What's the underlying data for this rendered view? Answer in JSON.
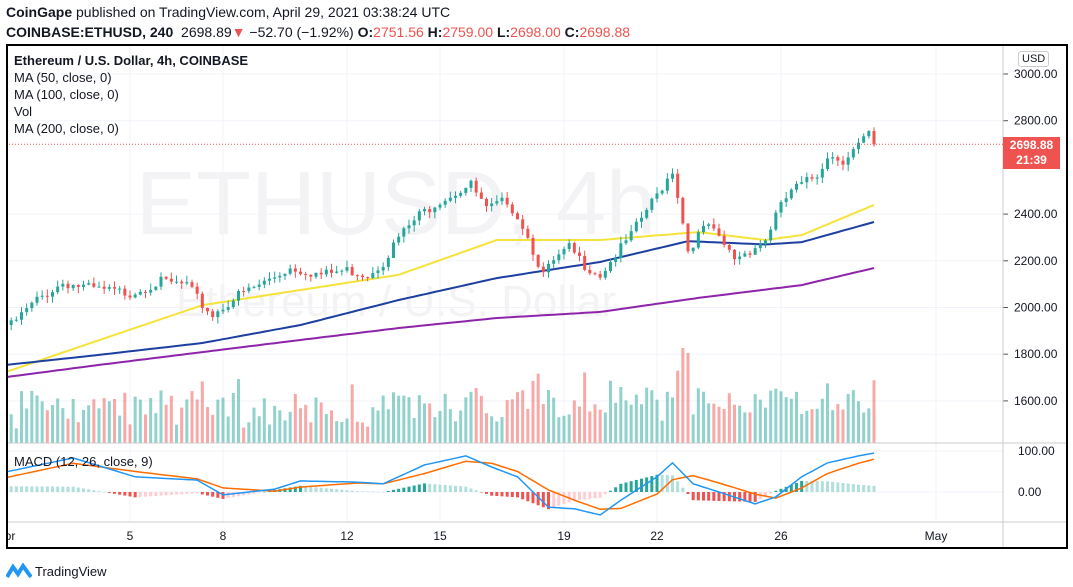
{
  "header": {
    "publisher": "CoinGape",
    "published_text": "published on TradingView.com, April 29, 2021 03:38:24 UTC",
    "symbol": "COINBASE:ETHUSD, 240",
    "last": "2698.89",
    "change": "−52.70 (−1.92%)",
    "o_label": "O:",
    "o": "2751.56",
    "h_label": "H:",
    "h": "2759.00",
    "l_label": "L:",
    "l": "2698.00",
    "c_label": "C:",
    "c": "2698.88"
  },
  "legend": {
    "title": "Ethereum / U.S. Dollar, 4h, COINBASE",
    "ma50": "MA (50, close, 0)",
    "ma100": "MA (100, close, 0)",
    "vol": "Vol",
    "ma200": "MA (200, close, 0)",
    "macd": "MACD (12, 26, close, 9)"
  },
  "watermark": {
    "symbol": "ETHUSD, 4h",
    "name": "Ethereum / U.S. Dollar"
  },
  "price_axis": {
    "currency": "USD",
    "last_price": "2698.88",
    "countdown": "21:39"
  },
  "branding": "TradingView",
  "colors": {
    "up": "#26a69a",
    "down": "#ef5350",
    "ma50": "#f5e33b",
    "ma100": "#1c3fa0",
    "ma200": "#8e24aa",
    "macd": "#2196f3",
    "signal": "#ff6d00"
  },
  "chart_data": {
    "type": "candlestick",
    "interval": "4h",
    "ylim": [
      1500,
      3100
    ],
    "yticks": [
      "3000.00",
      "2800.00",
      "2400.00",
      "2200.00",
      "2000.00",
      "1800.00",
      "1600.00"
    ],
    "xticks": [
      {
        "label": "Apr",
        "t": "Apr 1 00:00"
      },
      {
        "label": "5",
        "t": "Apr 5 00:00"
      },
      {
        "label": "8",
        "t": "Apr 8 00:00"
      },
      {
        "label": "12",
        "t": "Apr 12 00:00"
      },
      {
        "label": "15",
        "t": "Apr 15 00:00"
      },
      {
        "label": "19",
        "t": "Apr 19 00:00"
      },
      {
        "label": "22",
        "t": "Apr 22 00:00"
      },
      {
        "label": "26",
        "t": "Apr 26 00:00"
      },
      {
        "label": "May",
        "t": "May 1 00:00"
      }
    ],
    "close": [
      [
        "Apr 1 04:00",
        1925
      ],
      [
        "Apr 2 00:00",
        2032
      ],
      [
        "Apr 2 20:00",
        2105
      ],
      [
        "Apr 4 00:00",
        2075
      ],
      [
        "Apr 5 00:00",
        2062
      ],
      [
        "Apr 6 00:00",
        2110
      ],
      [
        "Apr 6 20:00",
        2096
      ],
      [
        "Apr 7 08:00",
        2010
      ],
      [
        "Apr 7 16:00",
        1968
      ],
      [
        "Apr 8 12:00",
        2053
      ],
      [
        "Apr 9 04:00",
        2096
      ],
      [
        "Apr 10 04:00",
        2170
      ],
      [
        "Apr 11 04:00",
        2140
      ],
      [
        "Apr 12 00:00",
        2160
      ],
      [
        "Apr 12 16:00",
        2140
      ],
      [
        "Apr 13 04:00",
        2195
      ],
      [
        "Apr 13 16:00",
        2300
      ],
      [
        "Apr 14 08:00",
        2396
      ],
      [
        "Apr 15 00:00",
        2460
      ],
      [
        "Apr 15 16:00",
        2503
      ],
      [
        "Apr 16 00:00",
        2525
      ],
      [
        "Apr 16 12:00",
        2418
      ],
      [
        "Apr 17 04:00",
        2460
      ],
      [
        "Apr 17 16:00",
        2353
      ],
      [
        "Apr 18 00:00",
        2246
      ],
      [
        "Apr 18 08:00",
        2140
      ],
      [
        "Apr 18 16:00",
        2195
      ],
      [
        "Apr 19 04:00",
        2255
      ],
      [
        "Apr 19 16:00",
        2182
      ],
      [
        "Apr 20 04:00",
        2140
      ],
      [
        "Apr 20 16:00",
        2225
      ],
      [
        "Apr 21 04:00",
        2310
      ],
      [
        "Apr 21 16:00",
        2418
      ],
      [
        "Apr 22 00:00",
        2482
      ],
      [
        "Apr 22 12:00",
        2589
      ],
      [
        "Apr 22 16:00",
        2482
      ],
      [
        "Apr 23 00:00",
        2246
      ],
      [
        "Apr 23 08:00",
        2310
      ],
      [
        "Apr 23 16:00",
        2353
      ],
      [
        "Apr 24 00:00",
        2289
      ],
      [
        "Apr 24 12:00",
        2212
      ],
      [
        "Apr 25 00:00",
        2246
      ],
      [
        "Apr 25 12:00",
        2289
      ],
      [
        "Apr 25 20:00",
        2396
      ],
      [
        "Apr 26 08:00",
        2503
      ],
      [
        "Apr 26 16:00",
        2525
      ],
      [
        "Apr 27 04:00",
        2567
      ],
      [
        "Apr 27 12:00",
        2653
      ],
      [
        "Apr 28 00:00",
        2632
      ],
      [
        "Apr 28 12:00",
        2696
      ],
      [
        "Apr 28 20:00",
        2739
      ],
      [
        "Apr 29 00:00",
        2699
      ]
    ],
    "ma50": [
      [
        "Apr 1 00:00",
        1724
      ],
      [
        "Apr 4 00:00",
        1860
      ],
      [
        "Apr 7 08:00",
        2010
      ],
      [
        "Apr 10 12:00",
        2075
      ],
      [
        "Apr 13 16:00",
        2140
      ],
      [
        "Apr 16 20:00",
        2289
      ],
      [
        "Apr 20 04:00",
        2289
      ],
      [
        "Apr 23 08:00",
        2323
      ],
      [
        "Apr 25 12:00",
        2289
      ],
      [
        "Apr 26 16:00",
        2310
      ],
      [
        "Apr 29 00:00",
        2439
      ]
    ],
    "ma100": [
      [
        "Apr 1 00:00",
        1754
      ],
      [
        "Apr 4 00:00",
        1797
      ],
      [
        "Apr 7 08:00",
        1848
      ],
      [
        "Apr 10 12:00",
        1925
      ],
      [
        "Apr 13 16:00",
        2032
      ],
      [
        "Apr 16 20:00",
        2126
      ],
      [
        "Apr 20 04:00",
        2195
      ],
      [
        "Apr 23 00:00",
        2284
      ],
      [
        "Apr 25 12:00",
        2270
      ],
      [
        "Apr 26 16:00",
        2280
      ],
      [
        "Apr 29 00:00",
        2366
      ]
    ],
    "ma200": [
      [
        "Apr 1 00:00",
        1702
      ],
      [
        "Apr 4 00:00",
        1754
      ],
      [
        "Apr 7 08:00",
        1809
      ],
      [
        "Apr 10 12:00",
        1861
      ],
      [
        "Apr 13 16:00",
        1912
      ],
      [
        "Apr 16 20:00",
        1955
      ],
      [
        "Apr 20 04:00",
        1981
      ],
      [
        "Apr 23 08:00",
        2041
      ],
      [
        "Apr 26 16:00",
        2096
      ],
      [
        "Apr 29 00:00",
        2169
      ]
    ],
    "macd": {
      "ylim": [
        -80,
        110
      ],
      "yticks": [
        "100.00",
        "0.00"
      ],
      "macd": [
        [
          "Apr 1 00:00",
          49
        ],
        [
          "Apr 3 04:00",
          83
        ],
        [
          "Apr 5 04:00",
          37
        ],
        [
          "Apr 7 04:00",
          29
        ],
        [
          "Apr 8 00:00",
          -7
        ],
        [
          "Apr 9 16:00",
          7
        ],
        [
          "Apr 10 12:00",
          27
        ],
        [
          "Apr 12 08:00",
          24
        ],
        [
          "Apr 13 04:00",
          20
        ],
        [
          "Apr 14 12:00",
          66
        ],
        [
          "Apr 15 20:00",
          88
        ],
        [
          "Apr 16 16:00",
          61
        ],
        [
          "Apr 17 12:00",
          37
        ],
        [
          "Apr 18 12:00",
          -37
        ],
        [
          "Apr 19 08:00",
          -41
        ],
        [
          "Apr 20 04:00",
          -56
        ],
        [
          "Apr 20 20:00",
          -20
        ],
        [
          "Apr 22 00:00",
          37
        ],
        [
          "Apr 22 12:00",
          71
        ],
        [
          "Apr 23 04:00",
          20
        ],
        [
          "Apr 24 00:00",
          0
        ],
        [
          "Apr 25 04:00",
          -29
        ],
        [
          "Apr 25 20:00",
          -12
        ],
        [
          "Apr 26 16:00",
          37
        ],
        [
          "Apr 27 12:00",
          71
        ],
        [
          "Apr 28 12:00",
          88
        ],
        [
          "Apr 29 00:00",
          95
        ]
      ],
      "signal": [
        [
          "Apr 1 00:00",
          35
        ],
        [
          "Apr 3 04:00",
          70
        ],
        [
          "Apr 5 04:00",
          50
        ],
        [
          "Apr 7 04:00",
          32
        ],
        [
          "Apr 8 00:00",
          10
        ],
        [
          "Apr 9 16:00",
          2
        ],
        [
          "Apr 10 12:00",
          12
        ],
        [
          "Apr 12 08:00",
          22
        ],
        [
          "Apr 13 04:00",
          20
        ],
        [
          "Apr 14 12:00",
          45
        ],
        [
          "Apr 15 20:00",
          75
        ],
        [
          "Apr 16 16:00",
          70
        ],
        [
          "Apr 17 12:00",
          50
        ],
        [
          "Apr 18 12:00",
          5
        ],
        [
          "Apr 19 08:00",
          -20
        ],
        [
          "Apr 20 04:00",
          -42
        ],
        [
          "Apr 20 20:00",
          -40
        ],
        [
          "Apr 22 00:00",
          -5
        ],
        [
          "Apr 22 12:00",
          30
        ],
        [
          "Apr 23 04:00",
          40
        ],
        [
          "Apr 24 00:00",
          22
        ],
        [
          "Apr 25 04:00",
          -5
        ],
        [
          "Apr 25 20:00",
          -15
        ],
        [
          "Apr 26 16:00",
          10
        ],
        [
          "Apr 27 12:00",
          45
        ],
        [
          "Apr 28 12:00",
          70
        ],
        [
          "Apr 29 00:00",
          80
        ]
      ]
    }
  }
}
